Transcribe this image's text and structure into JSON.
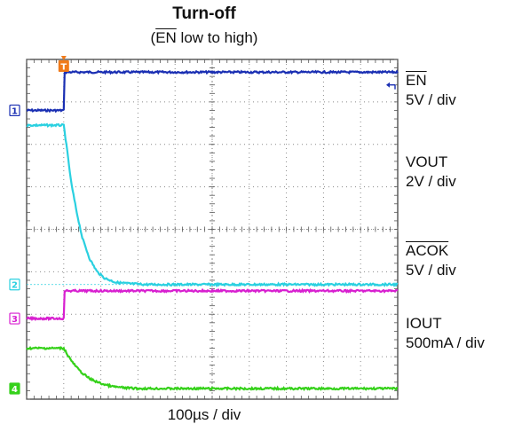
{
  "title": "Turn-off",
  "subtitle": {
    "pre": "(",
    "overbar": "EN",
    "post": " low to high)"
  },
  "xlabel": "100µs / div",
  "trigger_marker": "T",
  "labels": [
    {
      "name": "EN",
      "overbar": true,
      "scale": "5V / div"
    },
    {
      "name": "VOUT",
      "overbar": false,
      "scale": "2V / div"
    },
    {
      "name": "ACOK",
      "overbar": true,
      "scale": "5V / div"
    },
    {
      "name": "IOUT",
      "overbar": false,
      "scale": "500mA / div"
    }
  ],
  "chart_data": {
    "type": "line",
    "title": "Turn-off",
    "xlabel": "100µs / div",
    "x_divisions": 10,
    "y_divisions": 8,
    "grid": true,
    "trigger_div": 1,
    "series": [
      {
        "name": "EN",
        "channel": "1",
        "color": "#1a2fb3",
        "unit": "div",
        "x": [
          0,
          1,
          1.01,
          10
        ],
        "y": [
          6.8,
          6.8,
          7.7,
          7.7
        ]
      },
      {
        "name": "VOUT",
        "channel": "2",
        "color": "#2ad0e0",
        "unit": "div",
        "x": [
          0,
          1,
          1.1,
          1.2,
          1.35,
          1.5,
          1.7,
          1.9,
          2.1,
          2.4,
          2.8,
          3.2,
          10
        ],
        "y": [
          6.45,
          6.45,
          5.8,
          5.1,
          4.4,
          3.8,
          3.3,
          3.0,
          2.85,
          2.75,
          2.72,
          2.7,
          2.7
        ]
      },
      {
        "name": "ACOK",
        "channel": "3",
        "color": "#d81fd0",
        "unit": "div",
        "x": [
          0,
          1,
          1.01,
          10
        ],
        "y": [
          1.9,
          1.9,
          2.55,
          2.55
        ]
      },
      {
        "name": "IOUT",
        "channel": "4",
        "color": "#35d11a",
        "unit": "div",
        "x": [
          0,
          1,
          1.1,
          1.25,
          1.45,
          1.7,
          2.0,
          2.3,
          2.6,
          3.0,
          10
        ],
        "y": [
          1.2,
          1.2,
          1.05,
          0.85,
          0.65,
          0.48,
          0.37,
          0.3,
          0.27,
          0.25,
          0.25
        ]
      }
    ],
    "ground_levels": [
      {
        "channel": "1",
        "y": 6.8
      },
      {
        "channel": "2",
        "y": 2.7
      },
      {
        "channel": "3",
        "y": 1.9
      },
      {
        "channel": "4",
        "y": 0.25
      }
    ]
  }
}
